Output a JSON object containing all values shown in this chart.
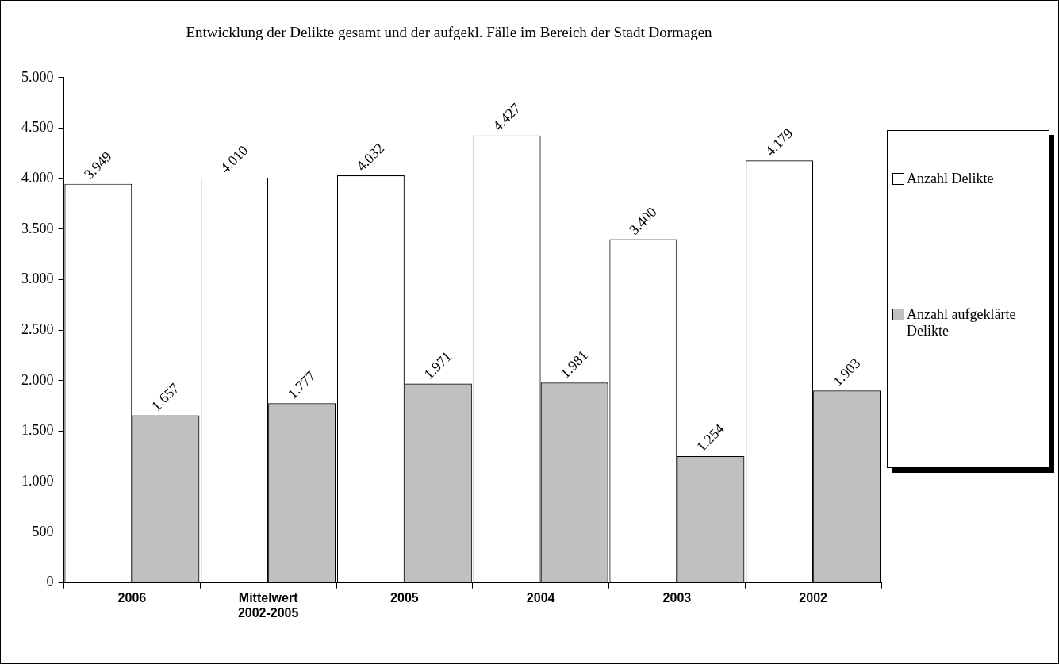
{
  "chart_data": {
    "type": "bar",
    "title": "Entwicklung der Delikte gesamt und der aufgekl. Fälle im Bereich der Stadt Dormagen",
    "categories": [
      "2006",
      "Mittelwert 2002-2005",
      "2005",
      "2004",
      "2003",
      "2002"
    ],
    "series": [
      {
        "name": "Anzahl Delikte",
        "color": "#ffffff",
        "values": [
          3949,
          4010,
          4032,
          4427,
          3400,
          4179
        ],
        "value_labels": [
          "3.949",
          "4.010",
          "4.032",
          "4.427",
          "3.400",
          "4.179"
        ]
      },
      {
        "name": "Anzahl aufgeklärte Delikte",
        "color": "#c0c0c0",
        "values": [
          1657,
          1777,
          1971,
          1981,
          1254,
          1903
        ],
        "value_labels": [
          "1.657",
          "1.777",
          "1.971",
          "1.981",
          "1.254",
          "1.903"
        ]
      }
    ],
    "ylim": [
      0,
      5000
    ],
    "yticks": [
      {
        "value": 0,
        "label": "0"
      },
      {
        "value": 500,
        "label": "500"
      },
      {
        "value": 1000,
        "label": "1.000"
      },
      {
        "value": 1500,
        "label": "1.500"
      },
      {
        "value": 2000,
        "label": "2.000"
      },
      {
        "value": 2500,
        "label": "2.500"
      },
      {
        "value": 3000,
        "label": "3.000"
      },
      {
        "value": 3500,
        "label": "3.500"
      },
      {
        "value": 4000,
        "label": "4.000"
      },
      {
        "value": 4500,
        "label": "4.500"
      },
      {
        "value": 5000,
        "label": "5.000"
      }
    ],
    "grid": false,
    "legend": "right"
  }
}
